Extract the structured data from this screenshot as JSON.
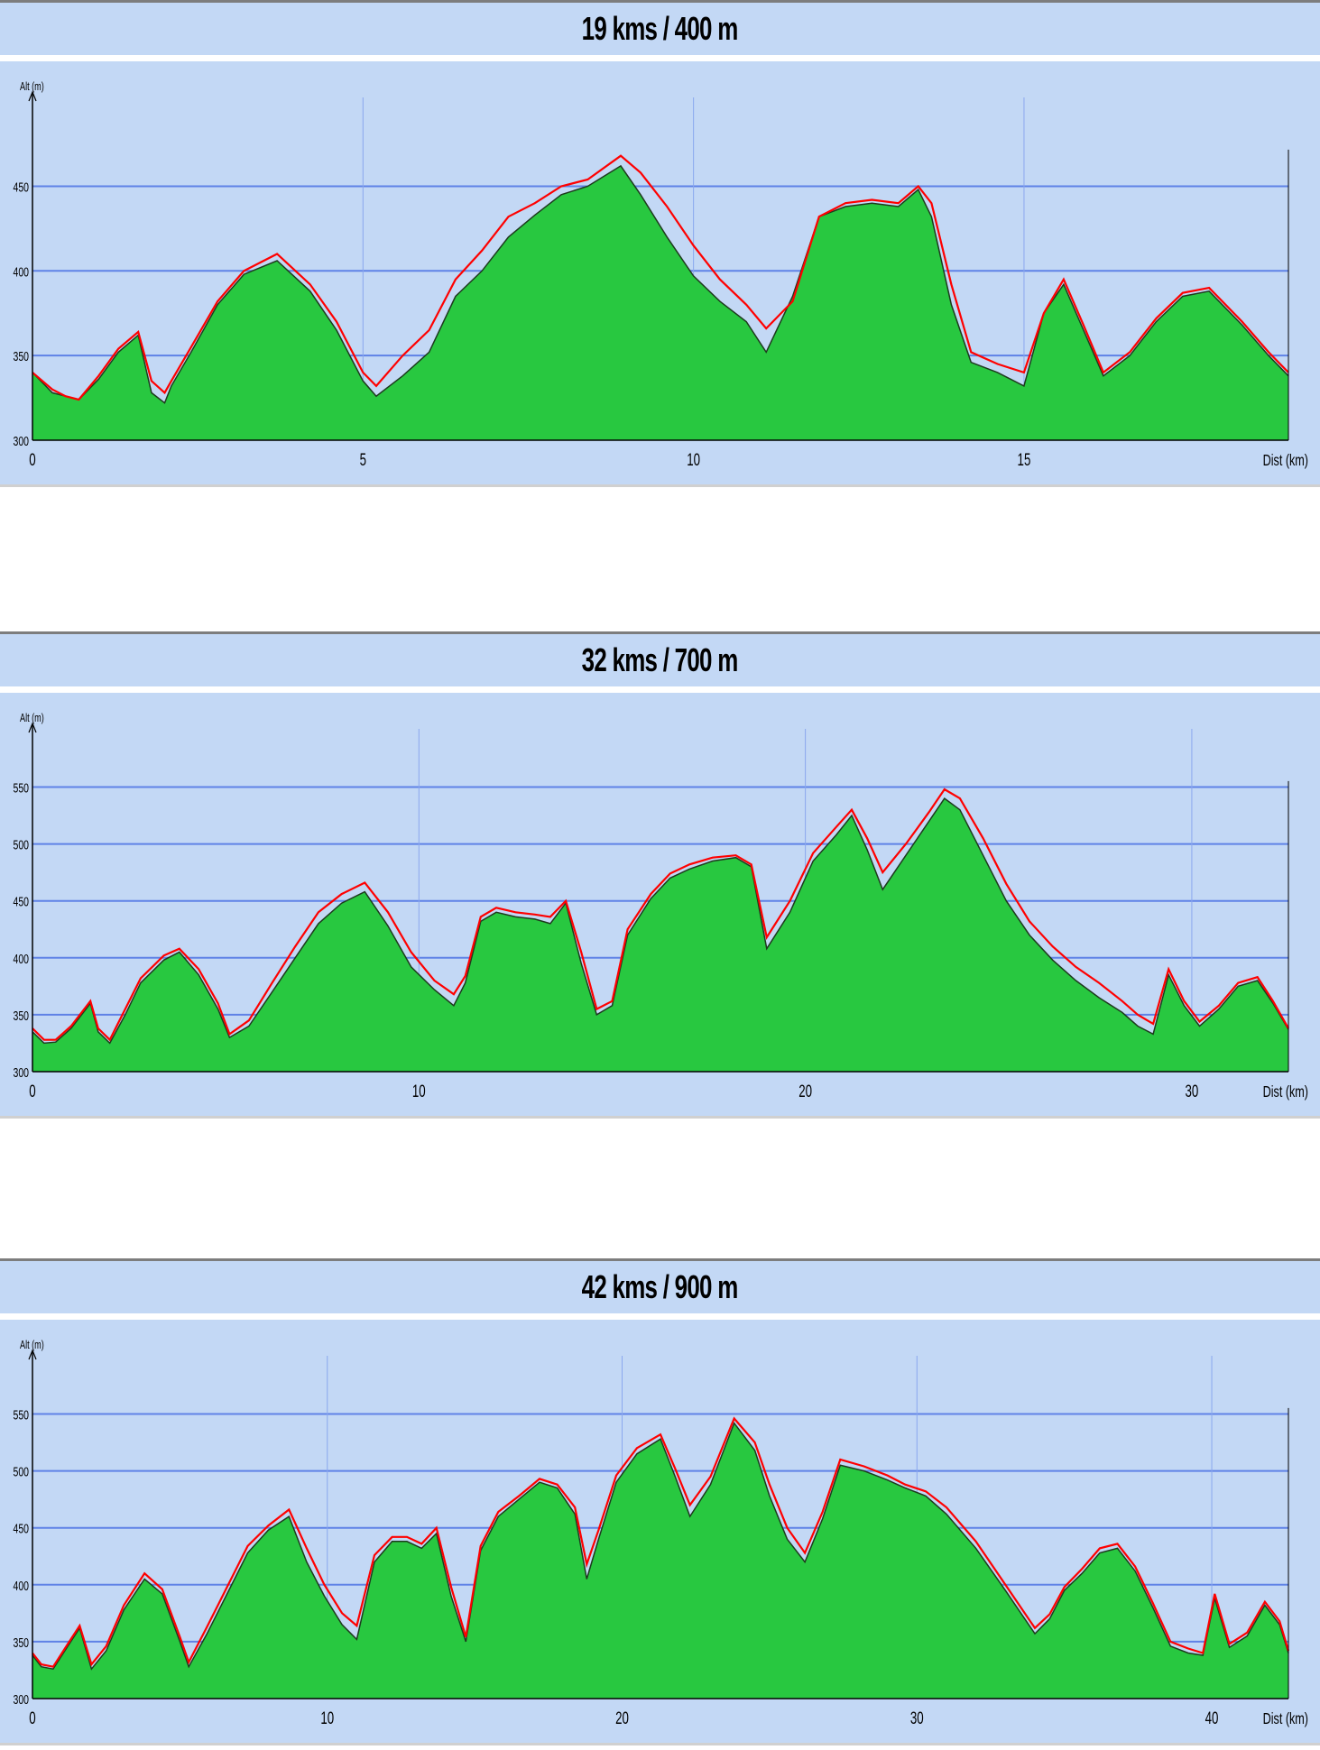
{
  "chart_data": [
    {
      "type": "area",
      "title": "19 kms / 400 m",
      "xlabel": "Dist (km)",
      "ylabel": "Alt (m)",
      "xlim": [
        0,
        19
      ],
      "ylim": [
        300,
        495
      ],
      "xticks": [
        0,
        5,
        10,
        15
      ],
      "yticks": [
        300,
        350,
        400,
        450
      ],
      "grid": true,
      "colors": {
        "terrain": "#28c840",
        "route": "#ff0000",
        "background": "#c3d8f5",
        "grid": "#5f82e6"
      },
      "series": [
        {
          "x": [
            0,
            0.3,
            0.5,
            0.7,
            1.0,
            1.3,
            1.6,
            1.8,
            2.0,
            2.1,
            2.4,
            2.8,
            3.2,
            3.7,
            4.2,
            4.6,
            5.0,
            5.2,
            5.6,
            6.0,
            6.4,
            6.8,
            7.2,
            7.6,
            8.0,
            8.4,
            8.9,
            9.2,
            9.6,
            10.0,
            10.4,
            10.8,
            11.1,
            11.5,
            11.9,
            12.3,
            12.7,
            13.1,
            13.4,
            13.6,
            13.9,
            14.2,
            14.6,
            15.0,
            15.3,
            15.6,
            15.9,
            16.2,
            16.6,
            17.0,
            17.4,
            17.8,
            18.3,
            18.7,
            19.0
          ],
          "y": [
            340,
            328,
            326,
            324,
            336,
            352,
            362,
            328,
            322,
            332,
            352,
            380,
            398,
            406,
            388,
            365,
            335,
            326,
            338,
            352,
            385,
            400,
            420,
            433,
            445,
            450,
            462,
            445,
            420,
            397,
            382,
            370,
            352,
            385,
            432,
            438,
            440,
            438,
            448,
            432,
            380,
            346,
            340,
            332,
            375,
            392,
            365,
            338,
            350,
            370,
            385,
            388,
            368,
            350,
            338
          ]
        },
        {
          "x": [
            0,
            0.3,
            0.5,
            0.7,
            1.0,
            1.3,
            1.6,
            1.8,
            2.0,
            2.1,
            2.4,
            2.8,
            3.2,
            3.7,
            4.2,
            4.6,
            5.0,
            5.2,
            5.6,
            6.0,
            6.4,
            6.8,
            7.2,
            7.6,
            8.0,
            8.4,
            8.9,
            9.2,
            9.6,
            10.0,
            10.4,
            10.8,
            11.1,
            11.5,
            11.9,
            12.3,
            12.7,
            13.1,
            13.4,
            13.6,
            13.9,
            14.2,
            14.6,
            15.0,
            15.3,
            15.6,
            15.9,
            16.2,
            16.6,
            17.0,
            17.4,
            17.8,
            18.3,
            18.7,
            19.0
          ],
          "y": [
            340,
            330,
            326,
            324,
            338,
            354,
            364,
            335,
            328,
            335,
            355,
            382,
            400,
            410,
            392,
            370,
            340,
            332,
            350,
            365,
            395,
            412,
            432,
            440,
            450,
            454,
            468,
            458,
            438,
            415,
            395,
            380,
            366,
            382,
            432,
            440,
            442,
            440,
            450,
            440,
            392,
            352,
            345,
            340,
            375,
            395,
            368,
            340,
            352,
            372,
            387,
            390,
            370,
            352,
            340
          ]
        }
      ]
    },
    {
      "type": "area",
      "title": "32 kms / 700 m",
      "xlabel": "Dist (km)",
      "ylabel": "Alt (m)",
      "xlim": [
        0,
        32.5
      ],
      "ylim": [
        300,
        590
      ],
      "xticks": [
        0,
        10,
        20,
        30
      ],
      "yticks": [
        300,
        350,
        400,
        450,
        500,
        550
      ],
      "grid": true,
      "colors": {
        "terrain": "#28c840",
        "route": "#ff0000",
        "background": "#c3d8f5",
        "grid": "#5f82e6"
      },
      "series": [
        {
          "x": [
            0,
            0.3,
            0.6,
            1.0,
            1.5,
            1.7,
            2.0,
            2.4,
            2.8,
            3.4,
            3.8,
            4.3,
            4.8,
            5.1,
            5.6,
            6.2,
            6.8,
            7.4,
            8.0,
            8.6,
            9.2,
            9.8,
            10.4,
            10.9,
            11.2,
            11.6,
            12.0,
            12.5,
            13.0,
            13.4,
            13.8,
            14.2,
            14.6,
            15.0,
            15.4,
            16.0,
            16.5,
            17.0,
            17.6,
            18.2,
            18.6,
            19.0,
            19.6,
            20.2,
            20.8,
            21.2,
            21.6,
            22.0,
            22.6,
            23.2,
            23.6,
            24.0,
            24.6,
            25.2,
            25.8,
            26.4,
            27.0,
            27.6,
            28.2,
            28.6,
            29.0,
            29.4,
            29.8,
            30.2,
            30.7,
            31.2,
            31.7,
            32.1,
            32.5
          ],
          "y": [
            335,
            325,
            326,
            338,
            360,
            335,
            325,
            350,
            378,
            398,
            405,
            385,
            355,
            330,
            340,
            370,
            400,
            430,
            448,
            458,
            428,
            392,
            372,
            358,
            378,
            432,
            440,
            436,
            434,
            430,
            448,
            395,
            350,
            358,
            420,
            452,
            470,
            478,
            485,
            488,
            480,
            408,
            440,
            485,
            508,
            525,
            495,
            460,
            490,
            520,
            540,
            530,
            490,
            450,
            420,
            398,
            380,
            365,
            352,
            340,
            333,
            385,
            358,
            340,
            355,
            375,
            380,
            360,
            337
          ]
        },
        {
          "x": [
            0,
            0.3,
            0.6,
            1.0,
            1.5,
            1.7,
            2.0,
            2.4,
            2.8,
            3.4,
            3.8,
            4.3,
            4.8,
            5.1,
            5.6,
            6.2,
            6.8,
            7.4,
            8.0,
            8.6,
            9.2,
            9.8,
            10.4,
            10.9,
            11.2,
            11.6,
            12.0,
            12.5,
            13.0,
            13.4,
            13.8,
            14.2,
            14.6,
            15.0,
            15.4,
            16.0,
            16.5,
            17.0,
            17.6,
            18.2,
            18.6,
            19.0,
            19.6,
            20.2,
            20.8,
            21.2,
            21.6,
            22.0,
            22.6,
            23.2,
            23.6,
            24.0,
            24.6,
            25.2,
            25.8,
            26.4,
            27.0,
            27.6,
            28.2,
            28.6,
            29.0,
            29.4,
            29.8,
            30.2,
            30.7,
            31.2,
            31.7,
            32.1,
            32.5
          ],
          "y": [
            338,
            328,
            328,
            340,
            362,
            338,
            328,
            355,
            382,
            402,
            408,
            390,
            360,
            333,
            345,
            378,
            410,
            440,
            456,
            466,
            440,
            405,
            380,
            368,
            384,
            436,
            444,
            440,
            438,
            436,
            450,
            405,
            355,
            362,
            425,
            456,
            474,
            482,
            488,
            490,
            482,
            418,
            450,
            492,
            515,
            530,
            505,
            475,
            500,
            528,
            548,
            540,
            505,
            465,
            432,
            410,
            392,
            378,
            362,
            350,
            342,
            390,
            362,
            344,
            358,
            378,
            383,
            362,
            338
          ]
        }
      ]
    },
    {
      "type": "area",
      "title": "42 kms / 900 m",
      "xlabel": "Dist (km)",
      "ylabel": "Alt (m)",
      "xlim": [
        0,
        42.6
      ],
      "ylim": [
        300,
        590
      ],
      "xticks": [
        0,
        10,
        20,
        30,
        40
      ],
      "yticks": [
        300,
        350,
        400,
        450,
        500,
        550
      ],
      "grid": true,
      "colors": {
        "terrain": "#28c840",
        "route": "#ff0000",
        "background": "#c3d8f5",
        "grid": "#5f82e6"
      },
      "series": [
        {
          "x": [
            0,
            0.3,
            0.7,
            1.2,
            1.6,
            2.0,
            2.5,
            3.1,
            3.8,
            4.4,
            5.0,
            5.3,
            5.9,
            6.6,
            7.3,
            8.0,
            8.7,
            9.3,
            9.9,
            10.5,
            11.0,
            11.6,
            12.2,
            12.7,
            13.2,
            13.7,
            14.2,
            14.7,
            15.2,
            15.8,
            16.5,
            17.2,
            17.8,
            18.4,
            18.8,
            19.2,
            19.8,
            20.5,
            21.3,
            21.8,
            22.3,
            23.0,
            23.8,
            24.5,
            25.0,
            25.6,
            26.2,
            26.8,
            27.4,
            28.2,
            29.0,
            29.6,
            30.3,
            31.0,
            32.0,
            33.0,
            34.0,
            34.5,
            35.0,
            35.6,
            36.2,
            36.8,
            37.4,
            38.0,
            38.6,
            39.2,
            39.7,
            40.1,
            40.6,
            41.2,
            41.8,
            42.3,
            42.6
          ],
          "y": [
            338,
            328,
            326,
            346,
            362,
            326,
            342,
            378,
            405,
            392,
            350,
            328,
            356,
            392,
            428,
            448,
            460,
            420,
            390,
            365,
            352,
            420,
            438,
            438,
            432,
            445,
            390,
            350,
            430,
            460,
            475,
            490,
            485,
            462,
            405,
            440,
            490,
            515,
            528,
            495,
            460,
            488,
            542,
            518,
            478,
            440,
            420,
            458,
            505,
            500,
            492,
            485,
            478,
            462,
            432,
            395,
            357,
            370,
            395,
            410,
            428,
            432,
            412,
            380,
            346,
            340,
            338,
            388,
            345,
            355,
            382,
            365,
            340
          ]
        },
        {
          "x": [
            0,
            0.3,
            0.7,
            1.2,
            1.6,
            2.0,
            2.5,
            3.1,
            3.8,
            4.4,
            5.0,
            5.3,
            5.9,
            6.6,
            7.3,
            8.0,
            8.7,
            9.3,
            9.9,
            10.5,
            11.0,
            11.6,
            12.2,
            12.7,
            13.2,
            13.7,
            14.2,
            14.7,
            15.2,
            15.8,
            16.5,
            17.2,
            17.8,
            18.4,
            18.8,
            19.2,
            19.8,
            20.5,
            21.3,
            21.8,
            22.3,
            23.0,
            23.8,
            24.5,
            25.0,
            25.6,
            26.2,
            26.8,
            27.4,
            28.2,
            29.0,
            29.6,
            30.3,
            31.0,
            32.0,
            33.0,
            34.0,
            34.5,
            35.0,
            35.6,
            36.2,
            36.8,
            37.4,
            38.0,
            38.6,
            39.2,
            39.7,
            40.1,
            40.6,
            41.2,
            41.8,
            42.3,
            42.6
          ],
          "y": [
            340,
            330,
            328,
            348,
            364,
            330,
            346,
            382,
            410,
            396,
            354,
            332,
            362,
            398,
            434,
            452,
            466,
            432,
            400,
            375,
            364,
            426,
            442,
            442,
            436,
            450,
            398,
            354,
            434,
            464,
            478,
            493,
            488,
            468,
            418,
            448,
            496,
            520,
            532,
            502,
            470,
            495,
            546,
            525,
            488,
            450,
            428,
            464,
            510,
            504,
            496,
            488,
            482,
            468,
            438,
            400,
            362,
            374,
            398,
            414,
            432,
            436,
            416,
            384,
            350,
            344,
            340,
            392,
            348,
            358,
            385,
            368,
            342
          ]
        }
      ]
    }
  ]
}
